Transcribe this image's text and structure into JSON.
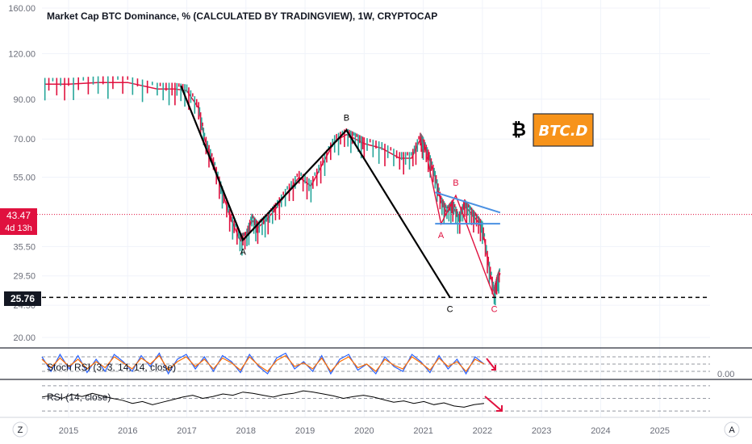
{
  "title": "Market Cap BTC Dominance, % (CALCULATED BY TRADINGVIEW), 1W, CRYPTOCAP",
  "logo": {
    "symbol": "₿",
    "text": "BTC.D",
    "color": "#f7931a"
  },
  "price_badge": {
    "value": "43.47",
    "countdown": "4d 13h",
    "color": "#e0113f"
  },
  "level_badge": {
    "value": "25.76"
  },
  "scale_buttons": {
    "left": "Z",
    "right": "A"
  },
  "colors": {
    "candles": "#e0113f",
    "candles_up": "#26a69a",
    "black_wave": "#000000",
    "red_wave": "#e0113f",
    "triangle": "#4a90e2",
    "price_line": "#e0113f",
    "stoch_k": "#2962ff",
    "stoch_d": "#ff6d00",
    "rsi": "#000000",
    "arrow": "#e0113f"
  },
  "chart_data": {
    "type": "line",
    "title": "Market Cap BTC Dominance, % (CALCULATED BY TRADINGVIEW), 1W, CRYPTOCAP",
    "x_tick_labels": [
      "2015",
      "2016",
      "2017",
      "2018",
      "2019",
      "2020",
      "2021",
      "2022",
      "2023",
      "2024",
      "2025"
    ],
    "y_tick_labels": [
      "160.00",
      "120.00",
      "90.00",
      "70.00",
      "55.00",
      "35.50",
      "29.50",
      "24.50",
      "20.00"
    ],
    "y_ticks": [
      160,
      120,
      90,
      70,
      55,
      35.5,
      29.5,
      24.5,
      20
    ],
    "y_scale": "log",
    "ylim": [
      18,
      160
    ],
    "xlim": [
      2014.55,
      2025.85
    ],
    "grid": true,
    "series": [
      {
        "kind": "price",
        "x": [
          2014.6,
          2015.0,
          2015.5,
          2016.0,
          2016.5,
          2016.8,
          2017.0,
          2017.2,
          2017.3,
          2017.45,
          2017.6,
          2017.75,
          2017.9,
          2018.0,
          2018.1,
          2018.2,
          2018.35,
          2018.5,
          2018.7,
          2018.9,
          2019.1,
          2019.3,
          2019.5,
          2019.7,
          2019.85,
          2020.0,
          2020.3,
          2020.6,
          2020.8,
          2020.95,
          2021.0,
          2021.1,
          2021.2,
          2021.3,
          2021.4,
          2021.5,
          2021.6,
          2021.7,
          2021.8,
          2021.9,
          2022.0,
          2022.1,
          2022.2,
          2022.25,
          2022.3
        ],
        "y": [
          99,
          99,
          100,
          100,
          96,
          96,
          95,
          85,
          70,
          60,
          50,
          42,
          37,
          37.5,
          42,
          40,
          42,
          45,
          50,
          55,
          52,
          60,
          69,
          72,
          70,
          68,
          66,
          62,
          62,
          70,
          68,
          62,
          55,
          47,
          44,
          46,
          42,
          46,
          44,
          42,
          40,
          32,
          26.5,
          28.5,
          30
        ]
      }
    ],
    "annotations": [
      {
        "kind": "wave",
        "color": "black",
        "points": [
          [
            2016.9,
            98
          ],
          [
            2017.95,
            37
          ],
          [
            2019.7,
            74
          ],
          [
            2021.45,
            25.76
          ]
        ],
        "labels": [
          "A",
          "B",
          "C"
        ]
      },
      {
        "kind": "wave",
        "color": "red",
        "points": [
          [
            2021.0,
            70
          ],
          [
            2021.3,
            41
          ],
          [
            2021.55,
            49
          ],
          [
            2022.2,
            25.76
          ]
        ],
        "labels": [
          "A",
          "B",
          "C"
        ]
      },
      {
        "kind": "triangle",
        "upper": [
          [
            2021.2,
            50
          ],
          [
            2022.3,
            44
          ]
        ],
        "lower": [
          [
            2021.2,
            41
          ],
          [
            2022.3,
            41
          ]
        ]
      },
      {
        "kind": "hline",
        "value": 43.47,
        "style": "dotted"
      },
      {
        "kind": "hline",
        "value": 25.76,
        "style": "dashed"
      }
    ]
  },
  "stoch_rsi": {
    "label": "Stoch RSI (3, 3, 14, 14, close)",
    "value_label": "0.00",
    "k": [
      80,
      20,
      90,
      30,
      85,
      15,
      70,
      20,
      90,
      60,
      20,
      85,
      40,
      95,
      10,
      70,
      90,
      30,
      80,
      20,
      85,
      60,
      15,
      90,
      40,
      10,
      75,
      95,
      30,
      60,
      20,
      85,
      10,
      70,
      90,
      25,
      50,
      10,
      80,
      40,
      20,
      90,
      60,
      15,
      85,
      30,
      70,
      10,
      80,
      50
    ],
    "d": [
      70,
      35,
      75,
      40,
      70,
      30,
      60,
      35,
      80,
      55,
      30,
      75,
      50,
      85,
      25,
      60,
      80,
      40,
      70,
      30,
      75,
      55,
      25,
      80,
      45,
      20,
      65,
      85,
      40,
      55,
      30,
      75,
      20,
      60,
      80,
      35,
      50,
      20,
      70,
      45,
      30,
      80,
      55,
      25,
      75,
      40,
      60,
      20,
      70,
      50
    ]
  },
  "rsi": {
    "label": "RSI (14, close)",
    "values": [
      52,
      55,
      50,
      56,
      53,
      58,
      54,
      50,
      47,
      42,
      45,
      40,
      44,
      48,
      52,
      55,
      50,
      53,
      57,
      55,
      60,
      58,
      55,
      52,
      56,
      58,
      62,
      60,
      57,
      54,
      50,
      53,
      55,
      52,
      48,
      44,
      46,
      42,
      45,
      40,
      43,
      38,
      36,
      40,
      42
    ]
  }
}
